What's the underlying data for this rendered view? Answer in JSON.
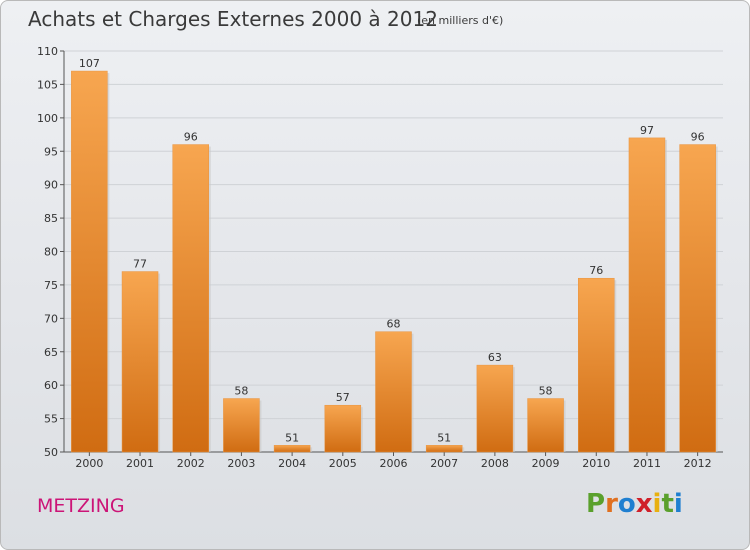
{
  "header": {
    "title": "Achats et Charges Externes 2000 à 2012",
    "subtitle": "(en milliers d'€)"
  },
  "footer": {
    "commune": "METZING",
    "logo": "Proxiti"
  },
  "colors": {
    "bar_light": "#f7a650",
    "bar_dark": "#d06c12",
    "commune": "#cc1477",
    "logo_letters": [
      "#5aa02c",
      "#e07020",
      "#1f7fd0",
      "#d0202a",
      "#e8b010",
      "#5aa02c",
      "#1f7fd0"
    ]
  },
  "chart_data": {
    "type": "bar",
    "title": "Achats et Charges Externes 2000 à 2012",
    "subtitle": "(en milliers d'€)",
    "categories": [
      "2000",
      "2001",
      "2002",
      "2003",
      "2004",
      "2005",
      "2006",
      "2007",
      "2008",
      "2009",
      "2010",
      "2011",
      "2012"
    ],
    "values": [
      107,
      77,
      96,
      58,
      51,
      57,
      68,
      51,
      63,
      58,
      76,
      97,
      96
    ],
    "ylim": [
      50,
      110
    ],
    "yticks": [
      50,
      55,
      60,
      65,
      70,
      75,
      80,
      85,
      90,
      95,
      100,
      105,
      110
    ],
    "grid": true,
    "xlabel": "",
    "ylabel": ""
  }
}
